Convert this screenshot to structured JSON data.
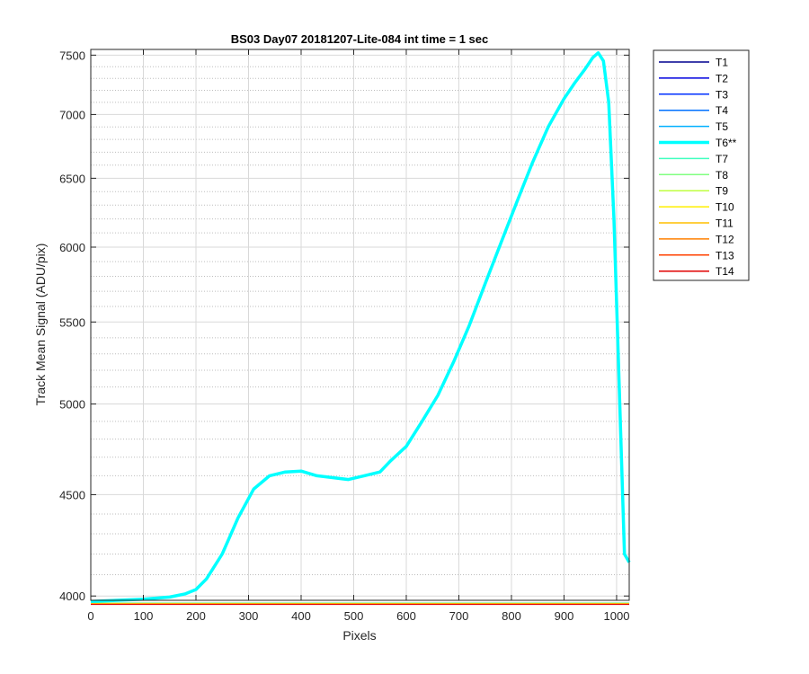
{
  "chart_data": {
    "type": "line",
    "title": "BS03 Day07 20181207-Lite-084 int time = 1 sec",
    "xlabel": "Pixels",
    "ylabel": "Track Mean Signal (ADU/pix)",
    "xlim": [
      0,
      1024
    ],
    "ylim": [
      3980,
      7550
    ],
    "yscale": "log",
    "x_ticks": [
      0,
      100,
      200,
      300,
      400,
      500,
      600,
      700,
      800,
      900,
      1000
    ],
    "y_ticks": [
      4000,
      4500,
      5000,
      5500,
      6000,
      6500,
      7000,
      7500
    ],
    "grid": true,
    "legend_position": "outside-right",
    "legend_entries": [
      "T1",
      "T2",
      "T3",
      "T4",
      "T5",
      "T6**",
      "T7",
      "T8",
      "T9",
      "T10",
      "T11",
      "T12",
      "T13",
      "T14"
    ],
    "highlighted_series": "T6**",
    "series": [
      {
        "name": "T1",
        "color": "#00008f",
        "values_constant": 3962
      },
      {
        "name": "T2",
        "color": "#0000df",
        "values_constant": 3963
      },
      {
        "name": "T3",
        "color": "#0030ff",
        "values_constant": 3964
      },
      {
        "name": "T4",
        "color": "#0070ff",
        "values_constant": 3965
      },
      {
        "name": "T5",
        "color": "#00b0ff",
        "values_constant": 3966
      },
      {
        "name": "T6**",
        "color": "#00ffff",
        "x": [
          0,
          50,
          100,
          150,
          180,
          200,
          220,
          250,
          280,
          310,
          340,
          370,
          400,
          430,
          460,
          490,
          520,
          550,
          570,
          600,
          630,
          660,
          690,
          720,
          750,
          780,
          810,
          840,
          870,
          900,
          920,
          940,
          955,
          965,
          975,
          985,
          995,
          1005,
          1015,
          1024
        ],
        "values": [
          3975,
          3980,
          3985,
          3995,
          4010,
          4030,
          4080,
          4200,
          4380,
          4530,
          4600,
          4620,
          4625,
          4600,
          4590,
          4580,
          4600,
          4620,
          4680,
          4760,
          4900,
          5050,
          5250,
          5480,
          5750,
          6030,
          6320,
          6620,
          6900,
          7130,
          7260,
          7380,
          7480,
          7520,
          7450,
          7100,
          6200,
          5100,
          4200,
          4160
        ]
      },
      {
        "name": "T7",
        "color": "#40ffbf",
        "values_constant": 3968
      },
      {
        "name": "T8",
        "color": "#80ff80",
        "values_constant": 3967
      },
      {
        "name": "T9",
        "color": "#bfff40",
        "values_constant": 3966
      },
      {
        "name": "T10",
        "color": "#ffef00",
        "values_constant": 3965
      },
      {
        "name": "T11",
        "color": "#ffbf00",
        "values_constant": 3964
      },
      {
        "name": "T12",
        "color": "#ff8000",
        "values_constant": 3963
      },
      {
        "name": "T13",
        "color": "#ff4000",
        "values_constant": 3962
      },
      {
        "name": "T14",
        "color": "#e00000",
        "values_constant": 3961
      }
    ]
  }
}
